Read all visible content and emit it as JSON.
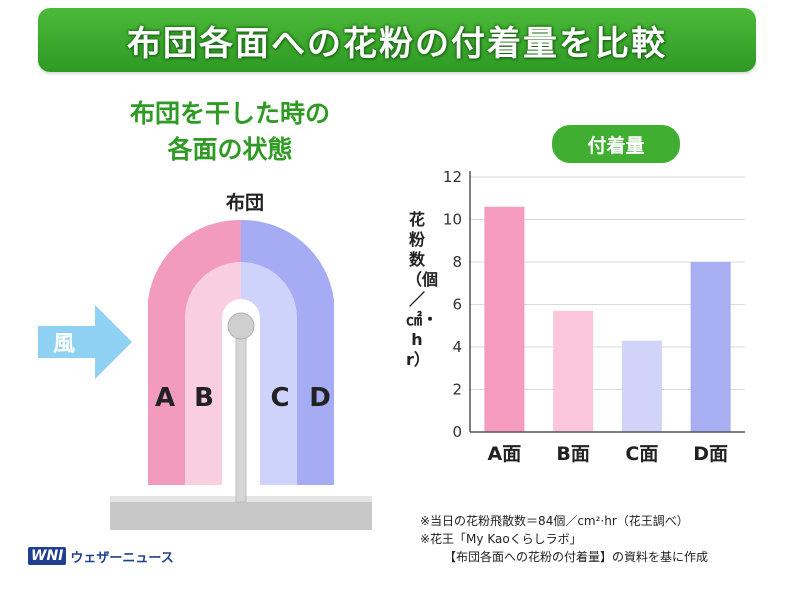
{
  "header": {
    "title": "布団各面への花粉の付着量を比較"
  },
  "illustration": {
    "caption_line1": "布団を干した時の",
    "caption_line2": "各面の状態",
    "futon_label": "布団",
    "wind_label": "風",
    "faces": [
      {
        "letter": "A",
        "color": "#f29bbf"
      },
      {
        "letter": "B",
        "color": "#f9cfe0"
      },
      {
        "letter": "C",
        "color": "#cdd3fa"
      },
      {
        "letter": "D",
        "color": "#a5acf3"
      }
    ],
    "wind_color": "#8fd1f2",
    "ground_color": "#c8c8c8"
  },
  "chart_data": {
    "type": "bar",
    "title": "付着量",
    "ylabel": "花粉数（個／㎠・hr）",
    "categories": [
      "A面",
      "B面",
      "C面",
      "D面"
    ],
    "values": [
      10.6,
      5.7,
      4.3,
      8.0
    ],
    "colors": [
      "#f59bc0",
      "#fbc6dc",
      "#cfd4f8",
      "#a8aef2"
    ],
    "ylim": [
      0,
      12
    ],
    "yticks": [
      0,
      2,
      4,
      6,
      8,
      10,
      12
    ],
    "grid": true
  },
  "notes": {
    "line1": "※当日の花粉飛散数＝84個／cm²·hr（花王調べ）",
    "line2": "※花王「My Kaoくらしラボ」",
    "line3": "【布団各面への花粉の付着量】の資料を基に作成"
  },
  "logo": {
    "mark": "WNI",
    "text": "ウェザーニュース",
    "color": "#1f3f8f"
  }
}
